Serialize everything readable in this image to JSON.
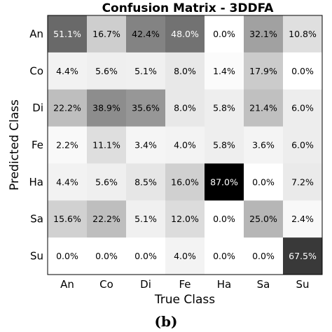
{
  "caption": "(b)",
  "chart_data": {
    "type": "heatmap",
    "title": "Confusion Matrix - 3DDFA",
    "xlabel": "True Class",
    "ylabel": "Predicted Class",
    "x_categories": [
      "An",
      "Co",
      "Di",
      "Fe",
      "Ha",
      "Sa",
      "Su"
    ],
    "y_categories": [
      "An",
      "Co",
      "Di",
      "Fe",
      "Ha",
      "Sa",
      "Su"
    ],
    "values": [
      [
        51.1,
        16.7,
        42.4,
        48.0,
        0.0,
        32.1,
        10.8
      ],
      [
        4.4,
        5.6,
        5.1,
        8.0,
        1.4,
        17.9,
        0.0
      ],
      [
        22.2,
        38.9,
        35.6,
        8.0,
        5.8,
        21.4,
        6.0
      ],
      [
        2.2,
        11.1,
        3.4,
        4.0,
        5.8,
        3.6,
        6.0
      ],
      [
        4.4,
        5.6,
        8.5,
        16.0,
        87.0,
        0.0,
        7.2
      ],
      [
        15.6,
        22.2,
        5.1,
        12.0,
        0.0,
        25.0,
        2.4
      ],
      [
        0.0,
        0.0,
        0.0,
        4.0,
        0.0,
        0.0,
        67.5
      ]
    ],
    "value_format": "percent_1dp",
    "colormap": "greys",
    "value_range": [
      0,
      87.0
    ],
    "grid": false
  }
}
